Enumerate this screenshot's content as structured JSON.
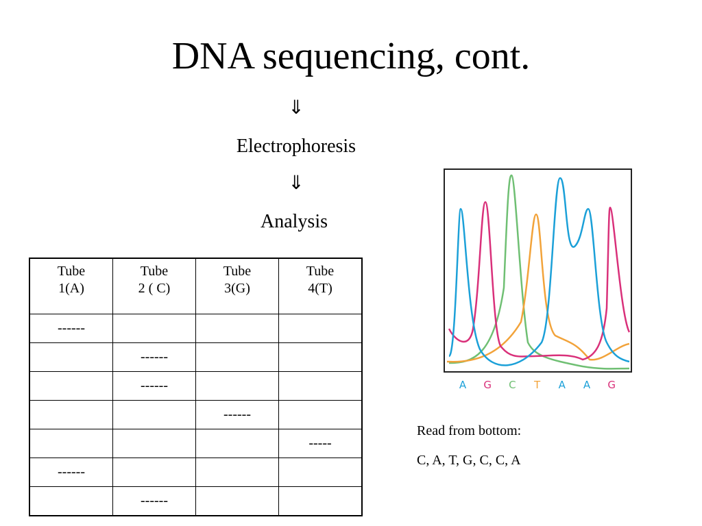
{
  "title": "DNA sequencing, cont.",
  "flow": [
    {
      "arrow": "⇓",
      "label": "Electrophoresis"
    },
    {
      "arrow": "⇓",
      "label": "Analysis"
    }
  ],
  "table": {
    "header": [
      [
        "Tube",
        "1(A)"
      ],
      [
        "Tube",
        "2 ( C)"
      ],
      [
        "Tube",
        "3(G)"
      ],
      [
        "Tube",
        "4(T)"
      ]
    ],
    "rows": [
      [
        "------",
        null,
        null,
        null
      ],
      [
        null,
        "------",
        null,
        null
      ],
      [
        null,
        "------",
        null,
        null
      ],
      [
        null,
        null,
        "------",
        null
      ],
      [
        null,
        null,
        null,
        "-----"
      ],
      [
        "------",
        null,
        null,
        null
      ],
      [
        null,
        "------",
        null,
        null
      ]
    ]
  },
  "chromatogram": {
    "bases": [
      {
        "letter": "A",
        "color": "#1ba0d8"
      },
      {
        "letter": "G",
        "color": "#d9307a"
      },
      {
        "letter": "C",
        "color": "#6fbf73"
      },
      {
        "letter": "T",
        "color": "#f2a33a"
      },
      {
        "letter": "A",
        "color": "#1ba0d8"
      },
      {
        "letter": "A",
        "color": "#1ba0d8"
      },
      {
        "letter": "G",
        "color": "#d9307a"
      }
    ]
  },
  "note": {
    "heading": "Read from bottom:",
    "sequence": "C, A, T, G, C, C, A"
  }
}
